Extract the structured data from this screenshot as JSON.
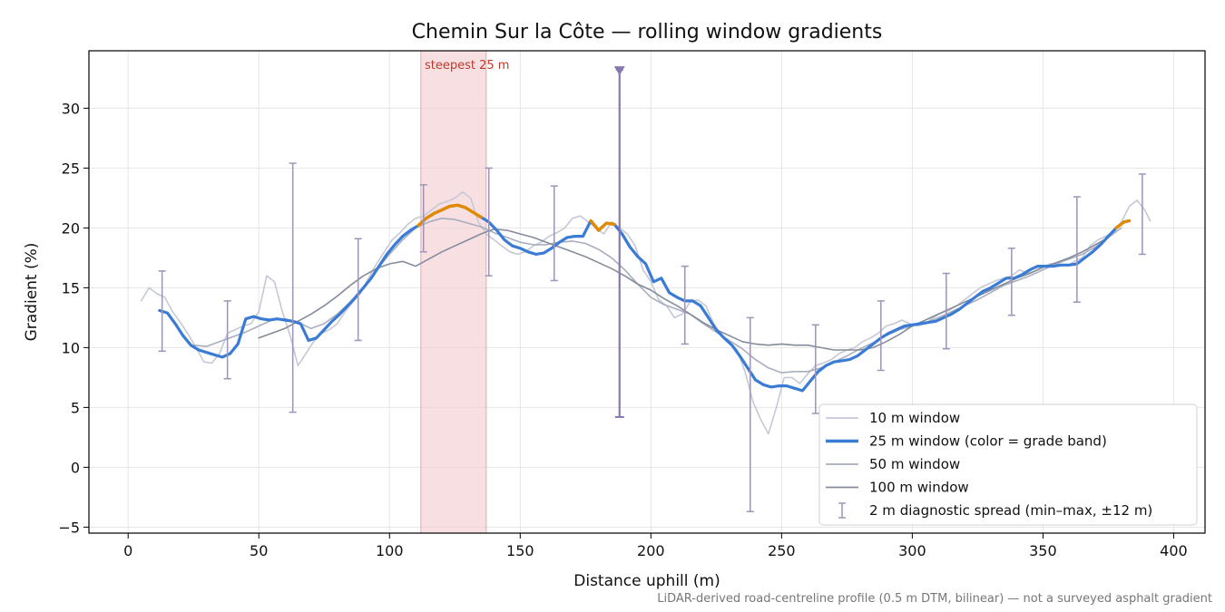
{
  "chart_data": {
    "type": "line",
    "title": "Chemin Sur la Côte — rolling window gradients",
    "xlabel": "Distance uphill (m)",
    "ylabel": "Gradient (%)",
    "xlim": [
      -15,
      412
    ],
    "ylim": [
      -5.5,
      34.8
    ],
    "xticks": [
      0,
      50,
      100,
      150,
      200,
      250,
      300,
      350,
      400
    ],
    "yticks": [
      -5,
      0,
      5,
      10,
      15,
      20,
      25,
      30
    ],
    "xtick_labels": [
      "0",
      "50",
      "100",
      "150",
      "200",
      "250",
      "300",
      "350",
      "400"
    ],
    "ytick_labels": [
      "−5",
      "0",
      "5",
      "10",
      "15",
      "20",
      "25",
      "30"
    ],
    "grid": true,
    "legend_position": "lower-right",
    "footnote": "LiDAR-derived road-centreline profile (0.5 m DTM, bilinear) — not a surveyed asphalt gradient",
    "annotations": {
      "steepest_label": "steepest 25 m",
      "steepest_span": [
        112,
        137
      ],
      "spike_x": 188,
      "spike_range": [
        4.2,
        33.2
      ]
    },
    "colors": {
      "w10": "#c5c9d6",
      "w25": "#3a7bd5",
      "w25_steep": "#e08a00",
      "w50": "#a7aebf",
      "w100": "#858c99",
      "errorbar": "#9c94b8",
      "spike": "#8878ad",
      "shade": "#f4cccf",
      "steepest_text": "#c0392b"
    },
    "legend": [
      {
        "key": "w10",
        "label": "10 m window"
      },
      {
        "key": "w25",
        "label": "25 m window (color = grade band)"
      },
      {
        "key": "w50",
        "label": "50 m window"
      },
      {
        "key": "w100",
        "label": "100 m window"
      },
      {
        "key": "err",
        "label": "2 m diagnostic spread (min–max, ±12 m)"
      }
    ],
    "series": [
      {
        "key": "w10",
        "name": "10 m window",
        "x": [
          5,
          8,
          11,
          14,
          17,
          20,
          23,
          26,
          29,
          32,
          35,
          38,
          41,
          44,
          47,
          50,
          53,
          56,
          59,
          62,
          65,
          68,
          71,
          74,
          77,
          80,
          83,
          86,
          89,
          92,
          95,
          98,
          101,
          104,
          107,
          110,
          113,
          116,
          119,
          122,
          125,
          128,
          131,
          134,
          137,
          140,
          143,
          146,
          149,
          152,
          155,
          158,
          161,
          164,
          167,
          170,
          173,
          176,
          179,
          182,
          185,
          188,
          191,
          194,
          197,
          200,
          203,
          206,
          209,
          212,
          215,
          218,
          221,
          224,
          227,
          230,
          233,
          236,
          239,
          242,
          245,
          248,
          251,
          254,
          257,
          260,
          263,
          266,
          269,
          272,
          275,
          278,
          281,
          284,
          287,
          290,
          293,
          296,
          299,
          302,
          305,
          308,
          311,
          314,
          317,
          320,
          323,
          326,
          329,
          332,
          335,
          338,
          341,
          344,
          347,
          350,
          353,
          356,
          359,
          362,
          365,
          368,
          371,
          374,
          377,
          380,
          383,
          386,
          389,
          391
        ],
        "y": [
          13.9,
          15.0,
          14.5,
          14.2,
          13.0,
          12.1,
          11.1,
          10.0,
          8.8,
          8.7,
          9.5,
          11.2,
          11.5,
          11.8,
          12.0,
          13.0,
          16.0,
          15.5,
          13.0,
          11.0,
          8.5,
          9.5,
          10.5,
          11.2,
          11.5,
          12.0,
          13.0,
          13.8,
          14.6,
          15.8,
          17.0,
          18.0,
          19.0,
          19.6,
          20.3,
          20.8,
          21.0,
          21.5,
          22.0,
          22.2,
          22.5,
          23.0,
          22.5,
          20.5,
          19.5,
          19.0,
          18.5,
          18.0,
          17.8,
          18.0,
          18.5,
          18.8,
          19.3,
          19.6,
          20.0,
          20.8,
          21.0,
          20.5,
          20.0,
          19.5,
          20.5,
          20.0,
          19.5,
          18.5,
          16.5,
          15.5,
          14.0,
          13.5,
          12.5,
          12.8,
          13.8,
          14.0,
          13.5,
          12.0,
          11.0,
          10.5,
          9.8,
          8.0,
          5.5,
          4.0,
          2.8,
          5.0,
          7.5,
          7.5,
          7.0,
          7.8,
          8.5,
          8.7,
          9.0,
          9.5,
          9.8,
          10.0,
          10.5,
          10.8,
          11.2,
          11.8,
          12.0,
          12.3,
          12.0,
          11.8,
          12.0,
          12.5,
          12.9,
          13.1,
          13.5,
          14.0,
          14.5,
          15.0,
          15.3,
          15.6,
          15.8,
          16.0,
          16.5,
          16.2,
          16.4,
          16.8,
          17.0,
          17.0,
          16.8,
          17.2,
          17.5,
          18.5,
          19.0,
          19.3,
          19.6,
          20.5,
          21.8,
          22.3,
          21.5,
          20.6
        ]
      },
      {
        "key": "w50",
        "name": "50 m window",
        "x": [
          25,
          30,
          35,
          40,
          45,
          50,
          55,
          60,
          65,
          70,
          75,
          80,
          85,
          90,
          95,
          100,
          105,
          110,
          115,
          120,
          125,
          130,
          135,
          140,
          145,
          150,
          155,
          160,
          165,
          170,
          175,
          180,
          185,
          190,
          195,
          200,
          205,
          210,
          215,
          220,
          225,
          230,
          235,
          240,
          245,
          250,
          255,
          260,
          265,
          270,
          275,
          280,
          285,
          290,
          295,
          300,
          305,
          310,
          315,
          320,
          325,
          330,
          335,
          340,
          345,
          350,
          355,
          360,
          365,
          370,
          375,
          380
        ],
        "y": [
          10.2,
          10.1,
          10.5,
          10.9,
          11.3,
          11.8,
          12.3,
          12.4,
          12.1,
          11.6,
          12.0,
          12.8,
          13.8,
          15.0,
          16.5,
          17.8,
          19.0,
          20.0,
          20.5,
          20.8,
          20.7,
          20.4,
          20.1,
          19.6,
          19.2,
          18.8,
          18.6,
          18.6,
          18.8,
          18.9,
          18.7,
          18.2,
          17.5,
          16.5,
          15.3,
          14.2,
          13.6,
          13.2,
          12.8,
          12.0,
          11.3,
          10.6,
          9.9,
          9.0,
          8.3,
          7.9,
          8.0,
          8.0,
          8.3,
          8.8,
          9.3,
          9.9,
          10.4,
          11.0,
          11.5,
          11.8,
          12.1,
          12.5,
          13.0,
          13.5,
          14.0,
          14.6,
          15.2,
          15.6,
          16.0,
          16.5,
          17.0,
          17.4,
          17.8,
          18.4,
          19.2,
          20.0
        ]
      },
      {
        "key": "w100",
        "name": "100 m window",
        "x": [
          50,
          55,
          60,
          65,
          70,
          75,
          80,
          85,
          90,
          95,
          100,
          105,
          110,
          115,
          120,
          125,
          130,
          135,
          140,
          145,
          150,
          155,
          160,
          165,
          170,
          175,
          180,
          185,
          190,
          195,
          200,
          205,
          210,
          215,
          220,
          225,
          230,
          235,
          240,
          245,
          250,
          255,
          260,
          265,
          270,
          275,
          280,
          285,
          290,
          295,
          300,
          305,
          310,
          315,
          320,
          325,
          330,
          335,
          340,
          345,
          350,
          355,
          360,
          365,
          370,
          375
        ],
        "y": [
          10.8,
          11.2,
          11.6,
          12.2,
          12.8,
          13.5,
          14.3,
          15.2,
          16.0,
          16.6,
          17.0,
          17.2,
          16.8,
          17.4,
          18.0,
          18.5,
          19.0,
          19.5,
          19.9,
          19.8,
          19.5,
          19.2,
          18.8,
          18.4,
          18.0,
          17.6,
          17.1,
          16.6,
          16.0,
          15.3,
          14.8,
          14.1,
          13.5,
          12.8,
          12.1,
          11.5,
          11.0,
          10.5,
          10.3,
          10.2,
          10.3,
          10.2,
          10.2,
          10.0,
          9.8,
          9.8,
          9.8,
          10.0,
          10.5,
          11.1,
          11.8,
          12.3,
          12.8,
          13.3,
          13.8,
          14.3,
          14.8,
          15.3,
          15.8,
          16.2,
          16.7,
          17.1,
          17.5,
          18.0,
          18.6,
          19.2
        ]
      },
      {
        "key": "w25",
        "name": "25 m window",
        "x": [
          12,
          15,
          18,
          21,
          24,
          27,
          30,
          33,
          36,
          39,
          42,
          45,
          48,
          51,
          54,
          57,
          60,
          63,
          66,
          69,
          72,
          75,
          78,
          81,
          84,
          87,
          90,
          93,
          96,
          99,
          102,
          105,
          108,
          111,
          114,
          117,
          120,
          123,
          126,
          129,
          132,
          135,
          138,
          141,
          144,
          147,
          150,
          153,
          156,
          159,
          162,
          165,
          168,
          171,
          174,
          177,
          180,
          183,
          186,
          189,
          192,
          195,
          198,
          201,
          204,
          207,
          210,
          213,
          216,
          219,
          222,
          225,
          228,
          231,
          234,
          237,
          240,
          243,
          246,
          249,
          252,
          255,
          258,
          261,
          264,
          267,
          270,
          273,
          276,
          279,
          282,
          285,
          288,
          291,
          294,
          297,
          300,
          303,
          306,
          309,
          312,
          315,
          318,
          321,
          324,
          327,
          330,
          333,
          336,
          339,
          342,
          345,
          348,
          351,
          354,
          357,
          360,
          363,
          366,
          369,
          372,
          375,
          378,
          381,
          383
        ],
        "y": [
          13.1,
          12.9,
          12.0,
          11.0,
          10.2,
          9.8,
          9.6,
          9.4,
          9.2,
          9.5,
          10.3,
          12.4,
          12.6,
          12.4,
          12.3,
          12.4,
          12.3,
          12.2,
          12.0,
          10.6,
          10.8,
          11.5,
          12.2,
          12.8,
          13.5,
          14.2,
          15.0,
          15.8,
          16.8,
          17.8,
          18.6,
          19.3,
          19.8,
          20.2,
          20.8,
          21.2,
          21.5,
          21.8,
          21.9,
          21.7,
          21.3,
          20.9,
          20.5,
          19.8,
          19.0,
          18.5,
          18.3,
          18.0,
          17.8,
          17.9,
          18.3,
          18.8,
          19.2,
          19.3,
          19.3,
          20.6,
          19.8,
          20.4,
          20.3,
          19.5,
          18.4,
          17.6,
          17.0,
          15.5,
          15.8,
          14.6,
          14.2,
          13.9,
          13.9,
          13.5,
          12.5,
          11.5,
          10.8,
          10.2,
          9.3,
          8.3,
          7.3,
          6.9,
          6.7,
          6.8,
          6.8,
          6.6,
          6.4,
          7.2,
          8.0,
          8.5,
          8.8,
          8.9,
          9.0,
          9.3,
          9.8,
          10.3,
          10.8,
          11.2,
          11.5,
          11.8,
          11.9,
          12.0,
          12.1,
          12.2,
          12.5,
          12.8,
          13.2,
          13.7,
          14.2,
          14.7,
          15.0,
          15.4,
          15.8,
          15.8,
          16.1,
          16.5,
          16.8,
          16.8,
          16.8,
          16.9,
          16.9,
          17.0,
          17.5,
          18.0,
          18.6,
          19.3,
          20.0,
          20.5,
          20.6
        ],
        "steep_ranges": [
          [
            111,
            137
          ],
          [
            175,
            187
          ],
          [
            376,
            384
          ]
        ]
      }
    ],
    "errorbars": {
      "name": "2 m diagnostic spread (min–max, ±12 m)",
      "x": [
        13,
        38,
        63,
        88,
        113,
        138,
        163,
        188,
        213,
        238,
        263,
        288,
        313,
        338,
        363,
        388
      ],
      "low": [
        9.7,
        7.4,
        4.6,
        10.6,
        18.0,
        16.0,
        15.6,
        4.2,
        10.3,
        -3.7,
        4.5,
        8.1,
        9.9,
        12.7,
        13.8,
        17.8
      ],
      "high": [
        16.4,
        13.9,
        25.4,
        19.1,
        23.6,
        25.0,
        23.5,
        33.2,
        16.8,
        12.5,
        11.9,
        13.9,
        16.2,
        18.3,
        22.6,
        24.5
      ]
    }
  }
}
